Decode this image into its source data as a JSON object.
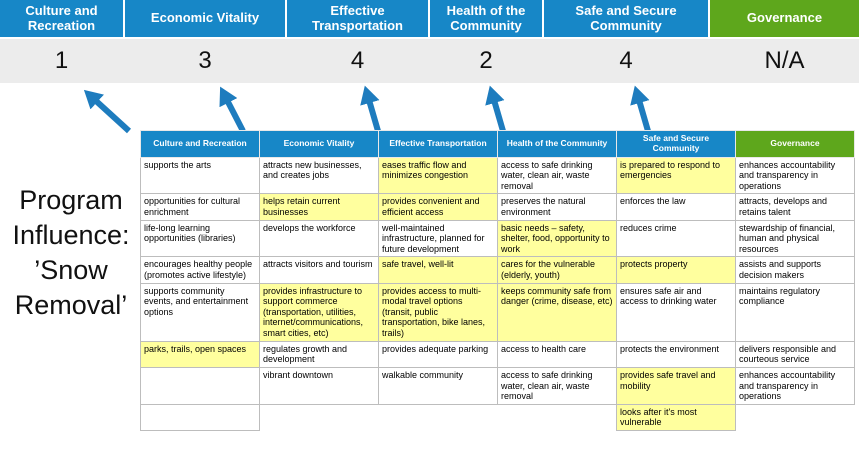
{
  "title": "Program Influence: ’Snow Removal’",
  "title_lines": [
    "Program",
    "Influence:",
    "’Snow",
    "Removal’"
  ],
  "colors": {
    "blue": "#1787c7",
    "green": "#5ea71c",
    "highlight": "#ffff9e",
    "score_band": "#ececec",
    "arrow": "#1e7cbe"
  },
  "summary": {
    "columns": [
      {
        "label": "Culture and Recreation",
        "score": "1",
        "color": "blue"
      },
      {
        "label": "Economic Vitality",
        "score": "3",
        "color": "blue"
      },
      {
        "label": "Effective Transportation",
        "score": "4",
        "color": "blue"
      },
      {
        "label": "Health of the Community",
        "score": "2",
        "color": "blue"
      },
      {
        "label": "Safe and Secure Community",
        "score": "4",
        "color": "blue"
      },
      {
        "label": "Governance",
        "score": "N/A",
        "color": "green"
      }
    ]
  },
  "table": {
    "headers": [
      {
        "label": "Culture and Recreation",
        "color": "blue"
      },
      {
        "label": "Economic Vitality",
        "color": "blue"
      },
      {
        "label": "Effective Transportation",
        "color": "blue"
      },
      {
        "label": "Health of the Community",
        "color": "blue"
      },
      {
        "label": "Safe and Secure Community",
        "color": "blue"
      },
      {
        "label": "Governance",
        "color": "green"
      }
    ],
    "rows": [
      [
        {
          "text": "supports the arts"
        },
        {
          "text": "attracts new businesses, and creates jobs"
        },
        {
          "text": "eases traffic flow and minimizes congestion",
          "hl": true
        },
        {
          "text": "access to safe drinking water, clean air, waste removal"
        },
        {
          "text": "is prepared to respond to emergencies",
          "hl": true
        },
        {
          "text": "enhances accountability and transparency in operations"
        }
      ],
      [
        {
          "text": "opportunities for cultural enrichment"
        },
        {
          "text": "helps retain current businesses",
          "hl": true
        },
        {
          "text": "provides convenient and efficient access",
          "hl": true
        },
        {
          "text": "preserves the natural environment"
        },
        {
          "text": "enforces the law"
        },
        {
          "text": "attracts, develops and retains talent"
        }
      ],
      [
        {
          "text": "life-long learning opportunities (libraries)"
        },
        {
          "text": "develops the workforce"
        },
        {
          "text": "well-maintained infrastructure, planned for future development"
        },
        {
          "text": "basic needs – safety, shelter, food, opportunity to work",
          "hl": true
        },
        {
          "text": "reduces crime"
        },
        {
          "text": "stewardship of financial, human and physical resources"
        }
      ],
      [
        {
          "text": "encourages healthy people (promotes active lifestyle)"
        },
        {
          "text": "attracts visitors and tourism"
        },
        {
          "text": "safe travel, well-lit",
          "hl": true
        },
        {
          "text": "cares for the vulnerable (elderly, youth)",
          "hl": true
        },
        {
          "text": "protects property",
          "hl": true
        },
        {
          "text": "assists and supports decision makers"
        }
      ],
      [
        {
          "text": "supports community events, and entertainment options"
        },
        {
          "text": "provides infrastructure to support commerce (transportation, utilities, internet/communications, smart cities, etc)",
          "hl": true
        },
        {
          "text": "provides access to multi-modal travel options (transit, public transportation, bike lanes, trails)",
          "hl": true
        },
        {
          "text": "keeps community safe from danger (crime, disease, etc)",
          "hl": true
        },
        {
          "text": "ensures safe air and access to drinking water"
        },
        {
          "text": "maintains regulatory compliance"
        }
      ],
      [
        {
          "text": "parks, trails, open spaces",
          "hl": true
        },
        {
          "text": "regulates growth and development"
        },
        {
          "text": "provides adequate parking"
        },
        {
          "text": "access to health care"
        },
        {
          "text": "protects the environment"
        },
        {
          "text": "delivers responsible and courteous service"
        }
      ],
      [
        {
          "text": ""
        },
        {
          "text": "vibrant downtown"
        },
        {
          "text": "walkable community"
        },
        {
          "text": "access to safe drinking water, clean air, waste removal"
        },
        {
          "text": "provides safe travel and mobility",
          "hl": true
        },
        {
          "text": "enhances accountability and transparency in operations"
        }
      ],
      [
        {
          "text": ""
        },
        {
          "text": "",
          "blank": true
        },
        {
          "text": "",
          "blank": true
        },
        {
          "text": "",
          "blank": true
        },
        {
          "text": "looks after it's most vulnerable",
          "hl": true
        },
        {
          "text": "",
          "blank": true
        }
      ]
    ]
  }
}
